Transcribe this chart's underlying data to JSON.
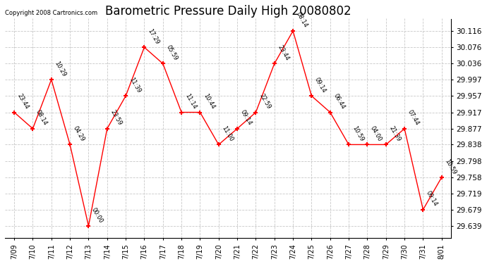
{
  "title": "Barometric Pressure Daily High 20080802",
  "copyright": "Copyright 2008 Cartronics.com",
  "x_labels": [
    "7/09",
    "7/10",
    "7/11",
    "7/12",
    "7/13",
    "7/14",
    "7/15",
    "7/16",
    "7/17",
    "7/18",
    "7/19",
    "7/20",
    "7/21",
    "7/22",
    "7/23",
    "7/24",
    "7/25",
    "7/26",
    "7/27",
    "7/28",
    "7/29",
    "7/30",
    "7/31",
    "8/01"
  ],
  "y_values": [
    29.917,
    29.877,
    29.997,
    29.838,
    29.639,
    29.877,
    29.957,
    30.076,
    30.036,
    29.917,
    29.917,
    29.838,
    29.877,
    29.917,
    30.036,
    30.116,
    29.957,
    29.917,
    29.838,
    29.838,
    29.838,
    29.877,
    29.679,
    29.758
  ],
  "time_labels": [
    "23:44",
    "08:14",
    "10:29",
    "04:29",
    "00:00",
    "23:59",
    "11:39",
    "17:29",
    "05:59",
    "11:14",
    "10:44",
    "11:00",
    "09:14",
    "22:59",
    "23:44",
    "08:14",
    "09:14",
    "06:44",
    "10:59",
    "04:00",
    "21:39",
    "07:44",
    "09:14",
    "10:59"
  ],
  "y_ticks": [
    29.639,
    29.679,
    29.719,
    29.758,
    29.798,
    29.838,
    29.877,
    29.917,
    29.957,
    29.997,
    30.036,
    30.076,
    30.116
  ],
  "ylim_low": 29.609,
  "ylim_high": 30.146,
  "line_color": "red",
  "bg_color": "white",
  "grid_color": "#c8c8c8",
  "title_fontsize": 12,
  "annot_fontsize": 6.0,
  "ytick_fontsize": 7.5,
  "xtick_fontsize": 7.0
}
